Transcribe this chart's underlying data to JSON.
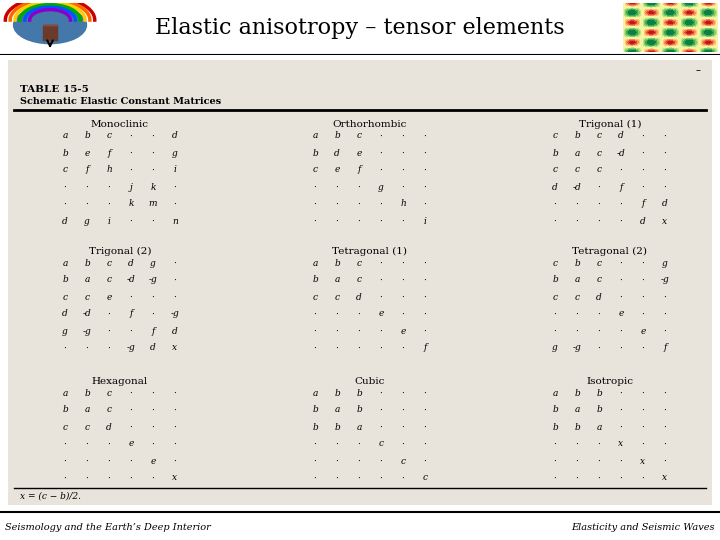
{
  "title": "Elastic anisotropy – tensor elements",
  "title_fontsize": 16,
  "footer_left": "Seismology and the Earth’s Deep Interior",
  "footer_right": "Elasticity and Seismic Waves",
  "footer_fontsize": 7,
  "table_title": "TABLE 15-5",
  "table_subtitle": "Schematic Elastic Constant Matrices",
  "matrices": {
    "Monoclinic": [
      [
        "a",
        "b",
        "c",
        "·",
        "·",
        "d"
      ],
      [
        "b",
        "e",
        "f",
        "·",
        "·",
        "g"
      ],
      [
        "c",
        "f",
        "h",
        "·",
        "·",
        "i"
      ],
      [
        "·",
        "·",
        "·",
        "j",
        "k",
        "·"
      ],
      [
        "·",
        "·",
        "·",
        "k",
        "m",
        "·"
      ],
      [
        "d",
        "g",
        "i",
        "·",
        "·",
        "n"
      ]
    ],
    "Orthorhombic": [
      [
        "a",
        "b",
        "c",
        "·",
        "·",
        "·"
      ],
      [
        "b",
        "d",
        "e",
        "·",
        "·",
        "·"
      ],
      [
        "c",
        "e",
        "f",
        "·",
        "·",
        "·"
      ],
      [
        "·",
        "·",
        "·",
        "g",
        "·",
        "·"
      ],
      [
        "·",
        "·",
        "·",
        "·",
        "h",
        "·"
      ],
      [
        "·",
        "·",
        "·",
        "·",
        "·",
        "i"
      ]
    ],
    "Trigonal (1)": [
      [
        "c",
        "b",
        "c",
        "d",
        "·",
        "·"
      ],
      [
        "b",
        "a",
        "c",
        "-d",
        "·",
        "·"
      ],
      [
        "c",
        "c",
        "c",
        "·",
        "·",
        "·"
      ],
      [
        "d",
        "-d",
        "·",
        "f",
        "·",
        "·"
      ],
      [
        "·",
        "·",
        "·",
        "·",
        "f",
        "d"
      ],
      [
        "·",
        "·",
        "·",
        "·",
        "d",
        "x"
      ]
    ],
    "Trigonal (2)": [
      [
        "a",
        "b",
        "c",
        "d",
        "g",
        "·"
      ],
      [
        "b",
        "a",
        "c",
        "-d",
        "-g",
        "·"
      ],
      [
        "c",
        "c",
        "e",
        "·",
        "·",
        "·"
      ],
      [
        "d",
        "-d",
        "·",
        "f",
        "·",
        "-g"
      ],
      [
        "g",
        "-g",
        "·",
        "·",
        "f",
        "d"
      ],
      [
        "·",
        "·",
        "·",
        "-g",
        "d",
        "x"
      ]
    ],
    "Tetragonal (1)": [
      [
        "a",
        "b",
        "c",
        "·",
        "·",
        "·"
      ],
      [
        "b",
        "a",
        "c",
        "·",
        "·",
        "·"
      ],
      [
        "c",
        "c",
        "d",
        "·",
        "·",
        "·"
      ],
      [
        "·",
        "·",
        "·",
        "e",
        "·",
        "·"
      ],
      [
        "·",
        "·",
        "·",
        "·",
        "e",
        "·"
      ],
      [
        "·",
        "·",
        "·",
        "·",
        "·",
        "f"
      ]
    ],
    "Tetragonal (2)": [
      [
        "c",
        "b",
        "c",
        "·",
        "·",
        "g"
      ],
      [
        "b",
        "a",
        "c",
        "·",
        "·",
        "-g"
      ],
      [
        "c",
        "c",
        "d",
        "·",
        "·",
        "·"
      ],
      [
        "·",
        "·",
        "·",
        "e",
        "·",
        "·"
      ],
      [
        "·",
        "·",
        "·",
        "·",
        "e",
        "·"
      ],
      [
        "g",
        "-g",
        "·",
        "·",
        "·",
        "f"
      ]
    ],
    "Hexagonal": [
      [
        "a",
        "b",
        "c",
        "·",
        "·",
        "·"
      ],
      [
        "b",
        "a",
        "c",
        "·",
        "·",
        "·"
      ],
      [
        "c",
        "c",
        "d",
        "·",
        "·",
        "·"
      ],
      [
        "·",
        "·",
        "·",
        "e",
        "·",
        "·"
      ],
      [
        "·",
        "·",
        "·",
        "·",
        "e",
        "·"
      ],
      [
        "·",
        "·",
        "·",
        "·",
        "·",
        "x"
      ]
    ],
    "Cubic": [
      [
        "a",
        "b",
        "b",
        "·",
        "·",
        "·"
      ],
      [
        "b",
        "a",
        "b",
        "·",
        "·",
        "·"
      ],
      [
        "b",
        "b",
        "a",
        "·",
        "·",
        "·"
      ],
      [
        "·",
        "·",
        "·",
        "c",
        "·",
        "·"
      ],
      [
        "·",
        "·",
        "·",
        "·",
        "c",
        "·"
      ],
      [
        "·",
        "·",
        "·",
        "·",
        "·",
        "c"
      ]
    ],
    "Isotropic": [
      [
        "a",
        "b",
        "b",
        "·",
        "·",
        "·"
      ],
      [
        "b",
        "a",
        "b",
        "·",
        "·",
        "·"
      ],
      [
        "b",
        "b",
        "a",
        "·",
        "·",
        "·"
      ],
      [
        "·",
        "·",
        "·",
        "x",
        "·",
        "·"
      ],
      [
        "·",
        "·",
        "·",
        "·",
        "x",
        "·"
      ],
      [
        "·",
        "·",
        "·",
        "·",
        "·",
        "x"
      ]
    ]
  },
  "footnote": "x = (c − b)/2.",
  "matrix_layout": [
    [
      "Monoclinic",
      "Orthorhombic",
      "Trigonal (1)"
    ],
    [
      "Trigonal (2)",
      "Tetragonal (1)",
      "Tetragonal (2)"
    ],
    [
      "Hexagonal",
      "Cubic",
      "Isotropic"
    ]
  ]
}
